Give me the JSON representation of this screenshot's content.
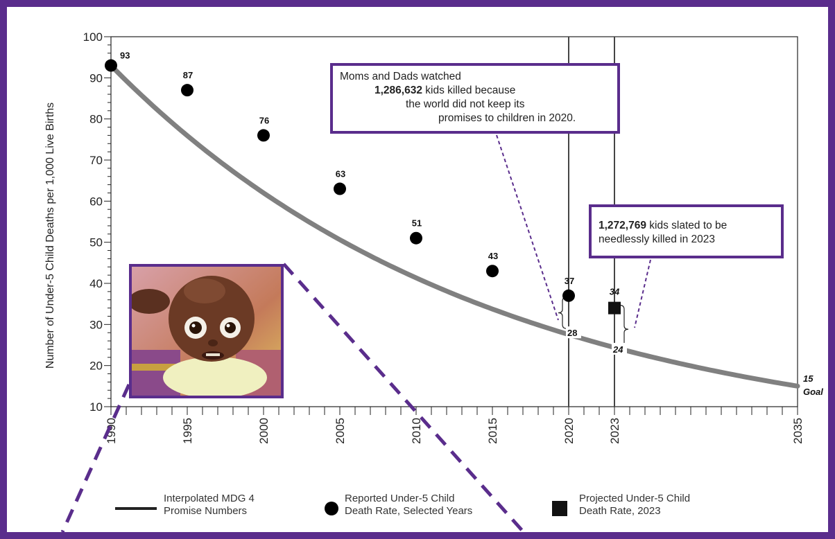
{
  "chart_data": {
    "type": "scatter",
    "ylabel": "Number of Under-5 Child Deaths per 1,000 Live Births",
    "xlabel": "",
    "xlim": [
      1990,
      2035
    ],
    "ylim": [
      10,
      100
    ],
    "yticks": [
      10,
      20,
      30,
      40,
      50,
      60,
      70,
      80,
      90,
      100
    ],
    "xticks": [
      1990,
      1995,
      2000,
      2005,
      2010,
      2015,
      2020,
      2023,
      2035
    ],
    "reported": {
      "name": "Reported Under-5 Child Death Rate, Selected Years",
      "points": [
        {
          "x": 1990,
          "y": 93,
          "label": "93"
        },
        {
          "x": 1995,
          "y": 87,
          "label": "87"
        },
        {
          "x": 2000,
          "y": 76,
          "label": "76"
        },
        {
          "x": 2005,
          "y": 63,
          "label": "63"
        },
        {
          "x": 2010,
          "y": 51,
          "label": "51"
        },
        {
          "x": 2015,
          "y": 43,
          "label": "43"
        },
        {
          "x": 2020,
          "y": 37,
          "label": "37"
        }
      ]
    },
    "projected": {
      "name": "Projected Under-5 Child Death Rate, 2023",
      "points": [
        {
          "x": 2023,
          "y": 34,
          "label": "34"
        }
      ]
    },
    "promise_curve": {
      "name": "Interpolated MDG 4 Promise Numbers",
      "start": {
        "x": 1990,
        "y": 93
      },
      "end": {
        "x": 2035,
        "y": 15
      },
      "marked": [
        {
          "x": 2020,
          "y": 28,
          "label": "28"
        },
        {
          "x": 2023,
          "y": 24,
          "label": "24"
        }
      ]
    },
    "goal": {
      "value": "15",
      "label": "Goal"
    },
    "vlines": [
      2020,
      2023
    ],
    "colors": {
      "curve": "#808080",
      "accent": "#5a2d8c",
      "points": "#000000"
    }
  },
  "callouts": {
    "c2020": {
      "line1": "Moms and Dads watched",
      "number": "1,286,632",
      "line2_rest": " kids killed because",
      "line3": "the world did not keep its",
      "line4": "promises to children in 2020."
    },
    "c2023": {
      "number": "1,272,769",
      "line1_rest": " kids slated to be",
      "line2": "needlessly killed in 2023"
    }
  },
  "legend": {
    "line": {
      "line1": "Interpolated MDG 4",
      "line2": "Promise Numbers"
    },
    "circle": {
      "line1": "Reported Under-5 Child",
      "line2": "Death Rate, Selected Years"
    },
    "square": {
      "line1": "Projected Under-5 Child",
      "line2": "Death Rate, 2023"
    }
  },
  "photo": {
    "icon": "child-photo-illustration"
  }
}
